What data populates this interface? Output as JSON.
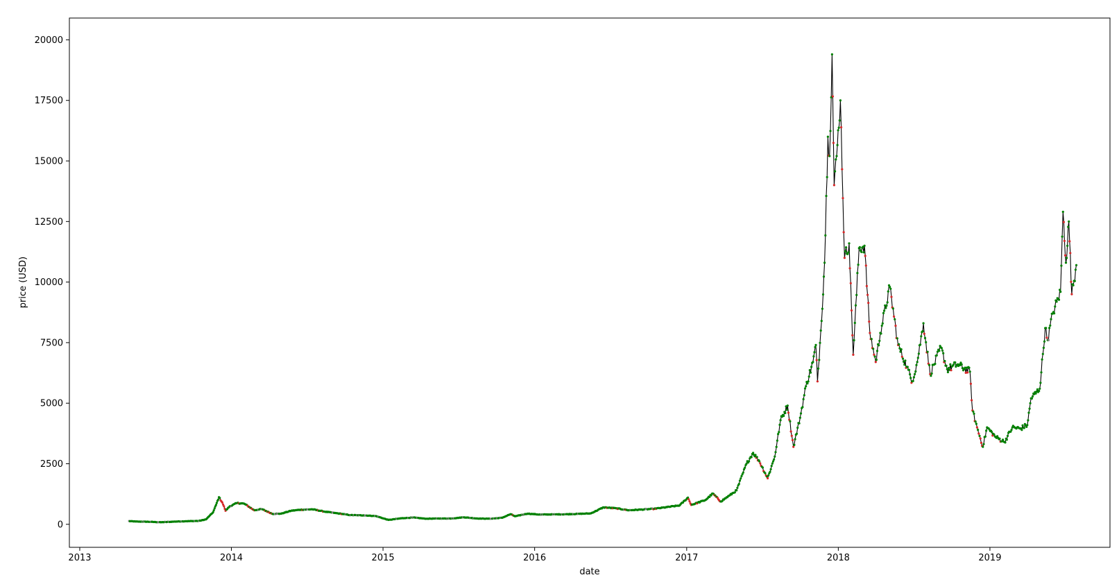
{
  "chart_data": {
    "type": "line",
    "title": "",
    "xlabel": "date",
    "ylabel": "price (USD)",
    "xlim": [
      "2012-12-07",
      "2019-10-17"
    ],
    "ylim": [
      -950,
      20900
    ],
    "x_ticks": [
      "2013-01-01",
      "2014-01-01",
      "2015-01-01",
      "2016-01-01",
      "2017-01-01",
      "2018-01-01",
      "2019-01-01"
    ],
    "x_tick_labels": [
      "2013",
      "2014",
      "2015",
      "2016",
      "2017",
      "2018",
      "2019"
    ],
    "y_ticks": [
      0,
      2500,
      5000,
      7500,
      10000,
      12500,
      15000,
      17500,
      20000
    ],
    "y_tick_labels": [
      "0",
      "2500",
      "5000",
      "7500",
      "10000",
      "12500",
      "15000",
      "17500",
      "20000"
    ],
    "grid": false,
    "legend": "none",
    "colors": {
      "line": "#000000",
      "up_marker": "#008000",
      "down_marker": "#d62728",
      "neutral_marker": "#808080"
    },
    "series": [
      {
        "values": [
          [
            "2013-04-28",
            135
          ],
          [
            "2013-05-15",
            115
          ],
          [
            "2013-06-15",
            105
          ],
          [
            "2013-07-15",
            85
          ],
          [
            "2013-08-15",
            110
          ],
          [
            "2013-09-15",
            128
          ],
          [
            "2013-10-15",
            140
          ],
          [
            "2013-11-01",
            205
          ],
          [
            "2013-11-18",
            500
          ],
          [
            "2013-11-25",
            800
          ],
          [
            "2013-12-02",
            1120
          ],
          [
            "2013-12-10",
            900
          ],
          [
            "2013-12-18",
            560
          ],
          [
            "2013-12-28",
            740
          ],
          [
            "2014-01-15",
            880
          ],
          [
            "2014-02-01",
            850
          ],
          [
            "2014-02-25",
            580
          ],
          [
            "2014-03-15",
            630
          ],
          [
            "2014-04-10",
            430
          ],
          [
            "2014-05-01",
            440
          ],
          [
            "2014-05-25",
            560
          ],
          [
            "2014-06-15",
            600
          ],
          [
            "2014-07-15",
            620
          ],
          [
            "2014-08-15",
            520
          ],
          [
            "2014-09-15",
            450
          ],
          [
            "2014-10-15",
            380
          ],
          [
            "2014-11-15",
            370
          ],
          [
            "2014-12-15",
            340
          ],
          [
            "2015-01-14",
            180
          ],
          [
            "2015-02-15",
            250
          ],
          [
            "2015-03-15",
            280
          ],
          [
            "2015-04-15",
            230
          ],
          [
            "2015-05-15",
            240
          ],
          [
            "2015-06-15",
            240
          ],
          [
            "2015-07-15",
            290
          ],
          [
            "2015-08-15",
            240
          ],
          [
            "2015-09-15",
            230
          ],
          [
            "2015-10-15",
            270
          ],
          [
            "2015-11-04",
            420
          ],
          [
            "2015-11-15",
            330
          ],
          [
            "2015-12-15",
            440
          ],
          [
            "2016-01-15",
            400
          ],
          [
            "2016-02-15",
            410
          ],
          [
            "2016-03-15",
            415
          ],
          [
            "2016-04-15",
            430
          ],
          [
            "2016-05-15",
            450
          ],
          [
            "2016-06-15",
            700
          ],
          [
            "2016-07-15",
            660
          ],
          [
            "2016-08-15",
            580
          ],
          [
            "2016-09-15",
            610
          ],
          [
            "2016-10-15",
            640
          ],
          [
            "2016-11-15",
            710
          ],
          [
            "2016-12-15",
            780
          ],
          [
            "2017-01-04",
            1100
          ],
          [
            "2017-01-12",
            800
          ],
          [
            "2017-02-15",
            1000
          ],
          [
            "2017-03-05",
            1270
          ],
          [
            "2017-03-24",
            940
          ],
          [
            "2017-04-15",
            1200
          ],
          [
            "2017-05-01",
            1400
          ],
          [
            "2017-05-25",
            2500
          ],
          [
            "2017-06-10",
            2950
          ],
          [
            "2017-06-25",
            2600
          ],
          [
            "2017-07-15",
            1900
          ],
          [
            "2017-08-01",
            2800
          ],
          [
            "2017-08-15",
            4300
          ],
          [
            "2017-09-01",
            4900
          ],
          [
            "2017-09-15",
            3200
          ],
          [
            "2017-10-01",
            4400
          ],
          [
            "2017-10-15",
            5700
          ],
          [
            "2017-11-01",
            6700
          ],
          [
            "2017-11-08",
            7400
          ],
          [
            "2017-11-12",
            5900
          ],
          [
            "2017-11-20",
            8000
          ],
          [
            "2017-11-29",
            10800
          ],
          [
            "2017-12-07",
            16000
          ],
          [
            "2017-12-11",
            15200
          ],
          [
            "2017-12-17",
            19400
          ],
          [
            "2017-12-22",
            14000
          ],
          [
            "2017-12-28",
            15200
          ],
          [
            "2018-01-06",
            17500
          ],
          [
            "2018-01-16",
            11000
          ],
          [
            "2018-01-27",
            11600
          ],
          [
            "2018-02-06",
            7000
          ],
          [
            "2018-02-20",
            11400
          ],
          [
            "2018-03-05",
            11500
          ],
          [
            "2018-03-18",
            7900
          ],
          [
            "2018-04-01",
            6700
          ],
          [
            "2018-04-12",
            7900
          ],
          [
            "2018-05-05",
            9800
          ],
          [
            "2018-05-25",
            7400
          ],
          [
            "2018-06-15",
            6500
          ],
          [
            "2018-06-28",
            5900
          ],
          [
            "2018-07-10",
            6700
          ],
          [
            "2018-07-25",
            8300
          ],
          [
            "2018-08-10",
            6200
          ],
          [
            "2018-09-05",
            7300
          ],
          [
            "2018-09-20",
            6400
          ],
          [
            "2018-10-15",
            6600
          ],
          [
            "2018-11-14",
            6300
          ],
          [
            "2018-11-20",
            4700
          ],
          [
            "2018-12-01",
            4000
          ],
          [
            "2018-12-15",
            3200
          ],
          [
            "2018-12-25",
            4000
          ],
          [
            "2019-01-15",
            3600
          ],
          [
            "2019-02-05",
            3400
          ],
          [
            "2019-02-24",
            4000
          ],
          [
            "2019-03-15",
            3950
          ],
          [
            "2019-04-01",
            4100
          ],
          [
            "2019-04-10",
            5200
          ],
          [
            "2019-05-01",
            5600
          ],
          [
            "2019-05-14",
            8100
          ],
          [
            "2019-05-20",
            7600
          ],
          [
            "2019-06-01",
            8700
          ],
          [
            "2019-06-20",
            9600
          ],
          [
            "2019-06-26",
            12900
          ],
          [
            "2019-07-03",
            10800
          ],
          [
            "2019-07-10",
            12500
          ],
          [
            "2019-07-17",
            9500
          ],
          [
            "2019-07-28",
            10700
          ]
        ]
      }
    ]
  }
}
